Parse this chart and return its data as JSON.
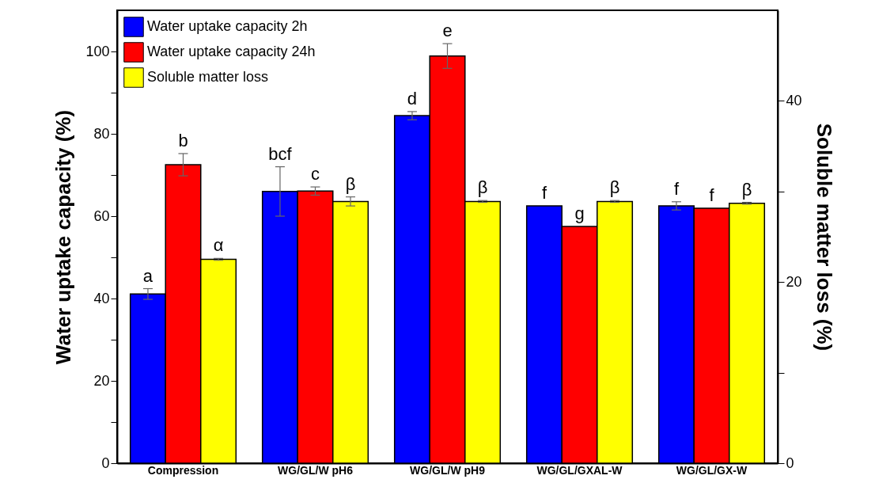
{
  "chart_data": {
    "type": "bar",
    "categories": [
      "Compression",
      "WG/GL/W pH6",
      "WG/GL/W pH9",
      "WG/GL/GXAL-W",
      "WG/GL/GX-W"
    ],
    "ylabel": "Water uptake capacity (%)",
    "y2label": "Soluble matter loss (%)",
    "ylim": [
      0,
      110
    ],
    "yticks": [
      0,
      {
        "value": 10,
        "label": null
      },
      20,
      {
        "value": 30,
        "label": null
      },
      40,
      {
        "value": 50,
        "label": null
      },
      60,
      {
        "value": 70,
        "label": null
      },
      80,
      {
        "value": 90,
        "label": null
      },
      100
    ],
    "y2lim": [
      0,
      50
    ],
    "y2ticks": [
      0,
      {
        "value": 10,
        "label": null
      },
      20,
      {
        "value": 30,
        "label": null
      },
      40
    ],
    "legend": "top left",
    "grid": false,
    "series": [
      {
        "name": "Water uptake capacity 2h",
        "color": "#0000ff",
        "values": [
          41.1,
          66.0,
          84.4,
          62.5,
          62.5
        ],
        "errors": [
          1.3,
          6.0,
          1.0,
          null,
          1.0
        ],
        "value_labels": [
          "a",
          "bcf",
          "d",
          "f",
          "f"
        ]
      },
      {
        "name": "Water uptake capacity 24h",
        "color": "#ff0000",
        "values": [
          72.5,
          66.1,
          98.9,
          57.5,
          61.9
        ],
        "errors": [
          2.7,
          1.0,
          3.0,
          null,
          null
        ],
        "value_labels": [
          "b",
          "c",
          "e",
          "g",
          "f"
        ]
      },
      {
        "name": "Soluble matter loss",
        "color": "#ffff00",
        "axis": "y2",
        "values": [
          22.5,
          28.9,
          28.9,
          28.9,
          28.7
        ],
        "errors": [
          0.1,
          0.5,
          0.1,
          0.1,
          0.1
        ],
        "value_labels": [
          "α",
          "β",
          "β",
          "β",
          "β"
        ]
      }
    ]
  }
}
